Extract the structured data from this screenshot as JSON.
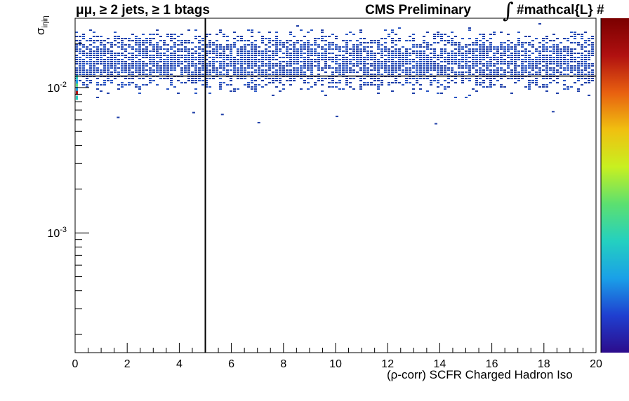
{
  "header": {
    "channel": "μμ, ≥ 2 jets, ≥ 1 btags",
    "experiment": "CMS Preliminary",
    "integral_symbol": "∫",
    "lumi_label": "#mathcal{L}  #"
  },
  "chart_data": {
    "type": "heatmap",
    "xlabel": "(ρ-corr) SCFR Charged Hadron Iso",
    "ylabel": "σ",
    "ylabel_subscript": "iηiη",
    "xlim": [
      0,
      20
    ],
    "ylim": [
      0.00015,
      0.03
    ],
    "yscale": "log",
    "x_ticks": [
      0,
      2,
      4,
      6,
      8,
      10,
      12,
      14,
      16,
      18,
      20
    ],
    "x_tick_labels": [
      "0",
      "2",
      "4",
      "6",
      "8",
      "10",
      "12",
      "14",
      "16",
      "18",
      "20"
    ],
    "y_ticks": [
      0.001,
      0.01
    ],
    "y_tick_labels": [
      {
        "base": "10",
        "exp": "-3"
      },
      {
        "base": "10",
        "exp": "-2"
      }
    ],
    "cut_lines": {
      "x": 5,
      "y": 0.012
    },
    "colormap": [
      "#2c0c8c",
      "#1f3fd0",
      "#1aa0e8",
      "#24d0c0",
      "#5ce070",
      "#c8f020",
      "#f0c010",
      "#e86010",
      "#b01010",
      "#7a0000"
    ],
    "band": {
      "y_min": 0.0068,
      "y_max": 0.028,
      "x_min": 0,
      "x_max": 20
    },
    "grid": false,
    "legend": "none"
  }
}
